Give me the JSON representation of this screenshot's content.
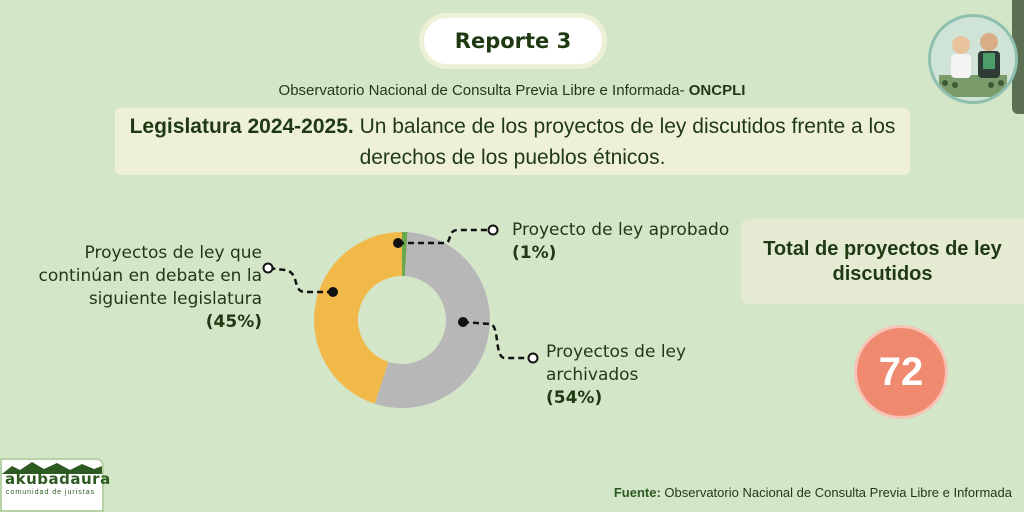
{
  "header": {
    "report_label": "Reporte 3",
    "observatory_text": "Observatorio Nacional de Consulta Previa Libre e Informada- ",
    "observatory_acronym": "ONCPLI",
    "headline_bold": "Legislatura 2024-2025.",
    "headline_rest": " Un balance de los proyectos de ley discutidos frente a los derechos de los pueblos étnicos."
  },
  "chart_data": {
    "type": "pie",
    "donut": true,
    "slices": [
      {
        "label_lines": [
          "Proyecto de ley aprobado"
        ],
        "pct_text": "(1%)",
        "value": 1,
        "color": "#6aa84f"
      },
      {
        "label_lines": [
          "Proyectos de ley",
          "archivados"
        ],
        "pct_text": "(54%)",
        "value": 54,
        "color": "#b7b7b7"
      },
      {
        "label_lines": [
          "Proyectos de ley que",
          "continúan en debate en la",
          "siguiente legislatura"
        ],
        "pct_text": "(45%)",
        "value": 45,
        "color": "#f0b94a"
      }
    ]
  },
  "total": {
    "label": "Total de proyectos de ley discutidos",
    "value": "72",
    "circle_color": "#ef8a71"
  },
  "brand": {
    "name": "akubadaura",
    "tagline": "comunidad de juristas"
  },
  "source": {
    "label": "Fuente:",
    "text": " Observatorio Nacional de Consulta Previa Libre e Informada"
  }
}
